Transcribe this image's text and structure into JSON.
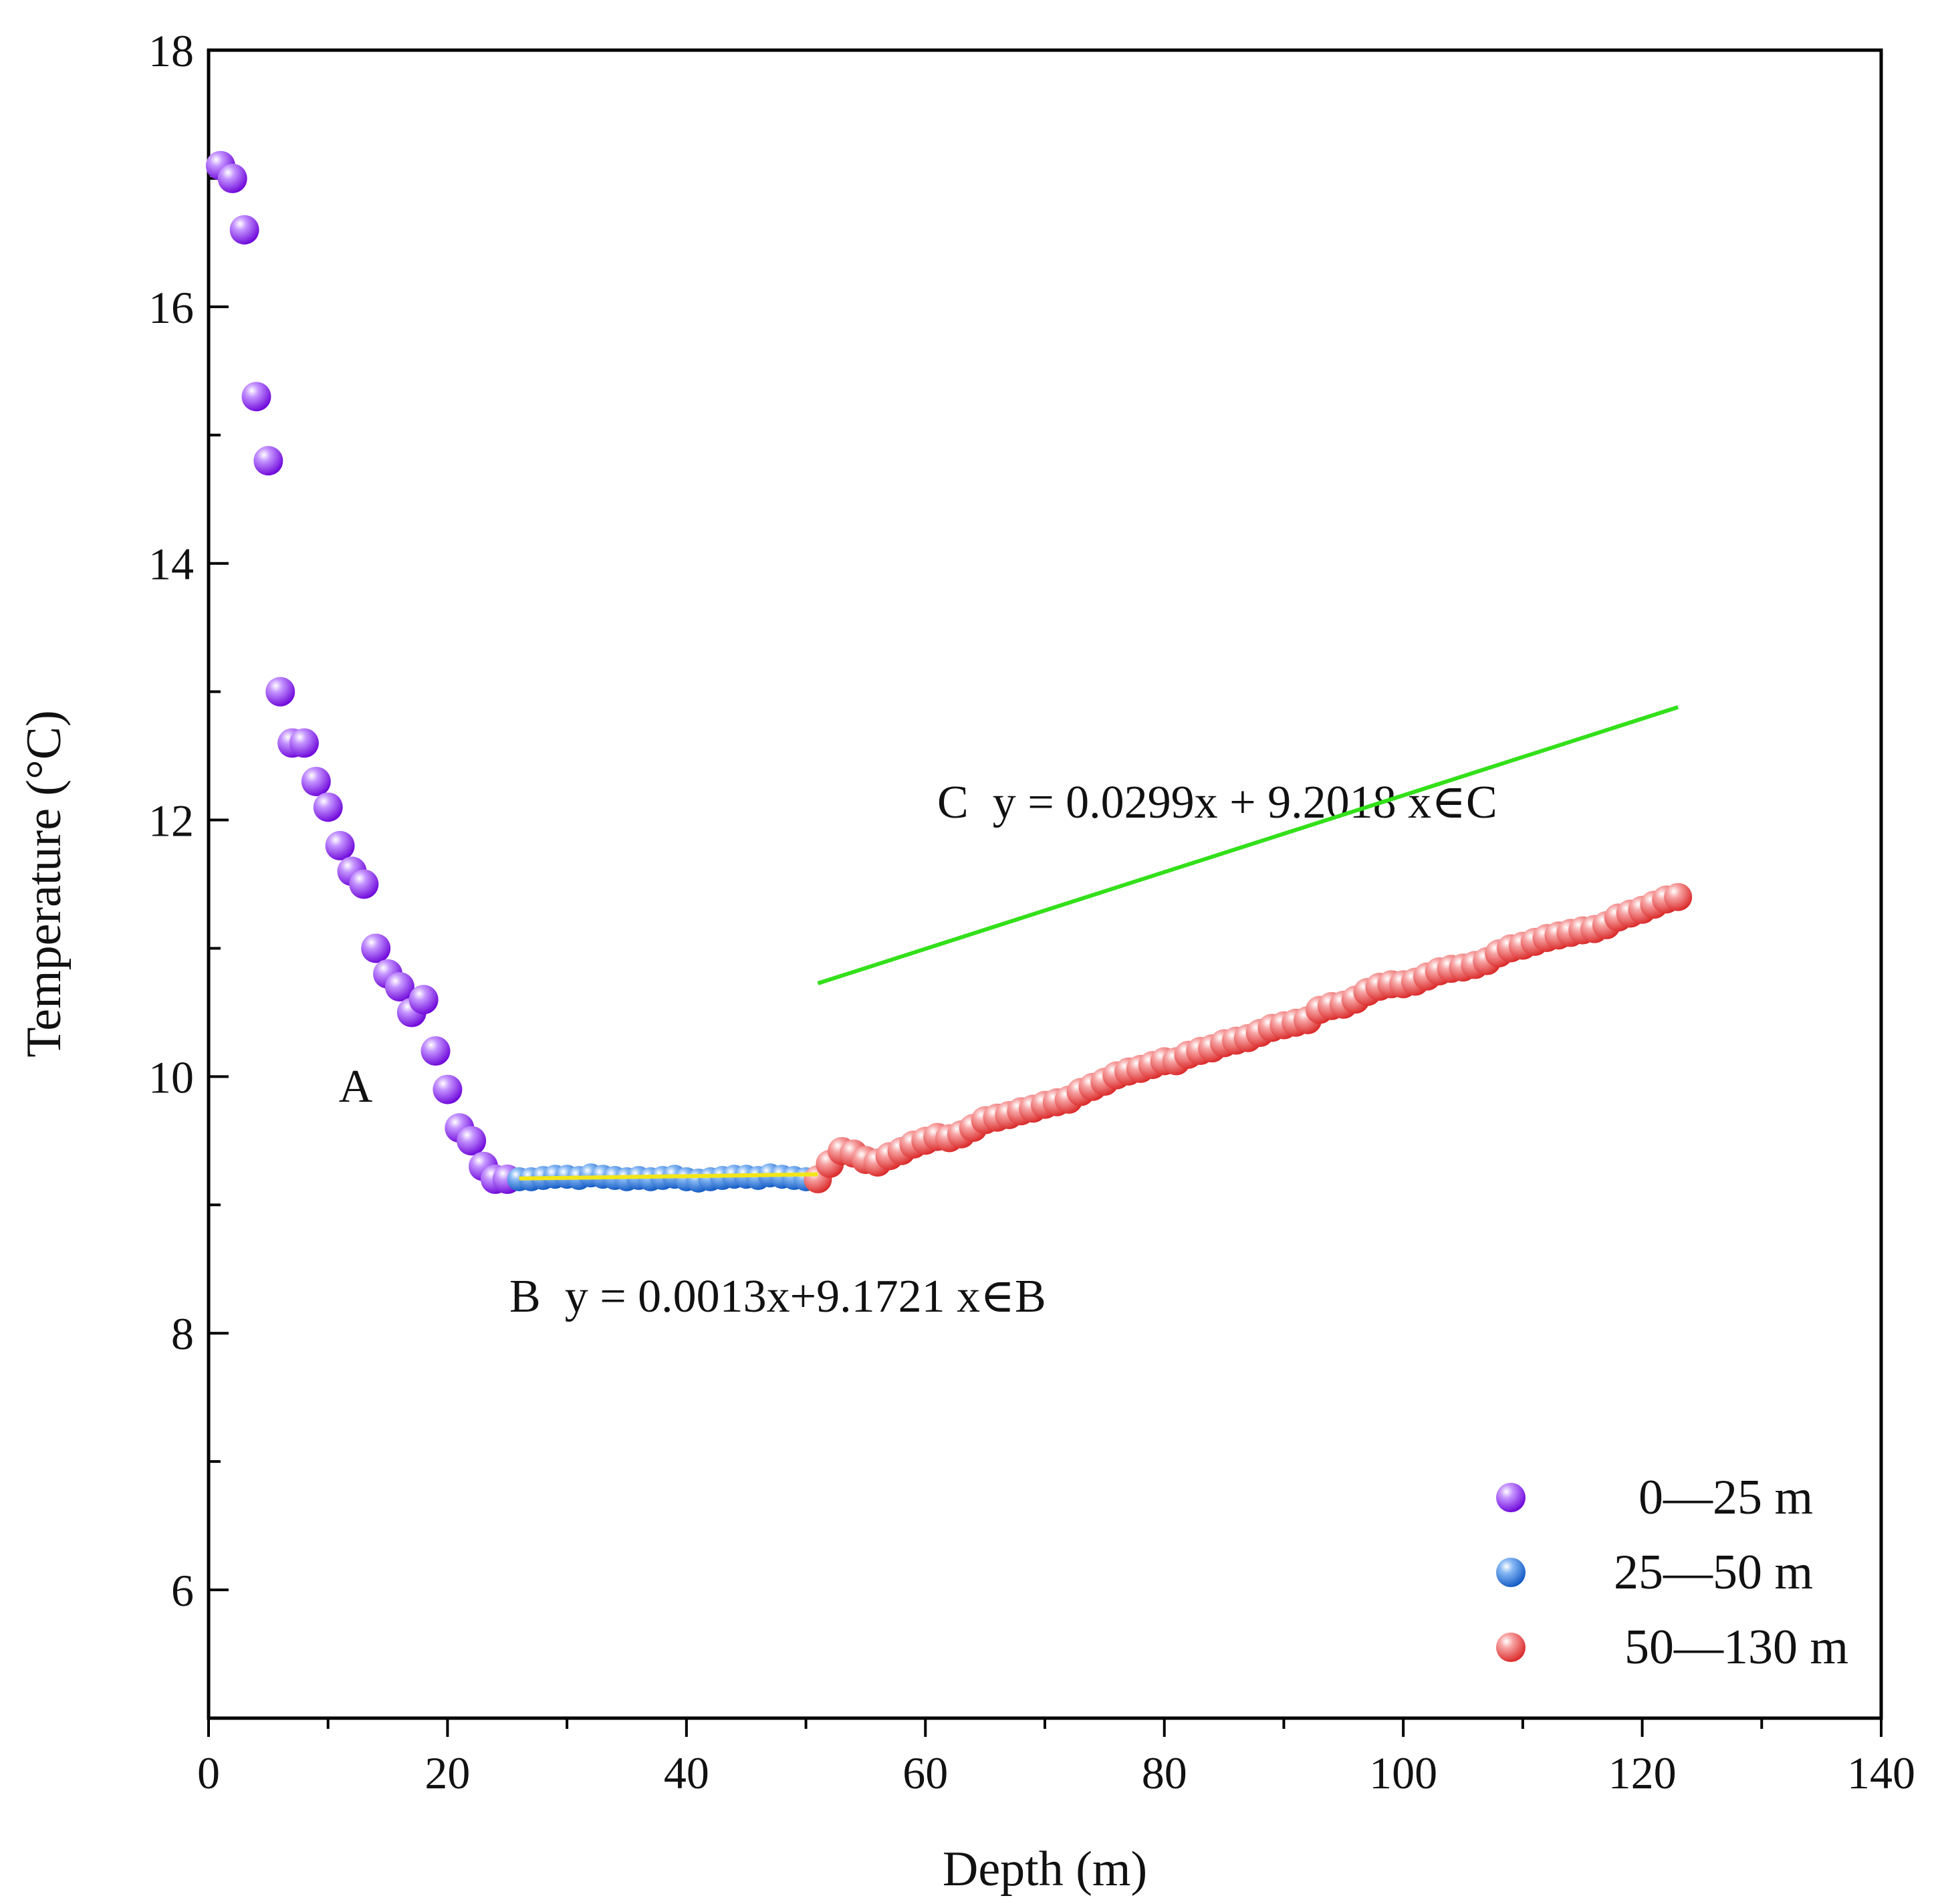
{
  "colors": {
    "series_A": "#8a1cf0",
    "series_B": "#1f70e0",
    "series_C": "#ef4747",
    "fit_B": "#f2e61a",
    "fit_C": "#33e01a",
    "axis": "#000000"
  },
  "chart_data": {
    "type": "scatter",
    "title": "",
    "xlabel": "Depth (m)",
    "ylabel": "Temperature (°C)",
    "xlim": [
      0,
      140
    ],
    "ylim": [
      5,
      18
    ],
    "xticks": [
      0,
      20,
      40,
      60,
      80,
      100,
      120,
      140
    ],
    "xticks_minor": [
      10,
      30,
      50,
      70,
      90,
      110,
      130
    ],
    "yticks": [
      6,
      8,
      10,
      12,
      14,
      16,
      18
    ],
    "yticks_minor": [
      7,
      9,
      11,
      13,
      15,
      17
    ],
    "grid": false,
    "legend_position": "bottom-right",
    "series": [
      {
        "name": "0—25 m",
        "color_key": "series_A",
        "x": [
          1,
          2,
          3,
          4,
          5,
          6,
          7,
          8,
          9,
          10,
          11,
          12,
          13,
          14,
          15,
          16,
          17,
          18,
          19,
          20,
          21,
          22,
          23,
          24,
          25
        ],
        "y": [
          17.1,
          17.0,
          16.6,
          15.3,
          14.8,
          13.0,
          12.6,
          12.6,
          12.3,
          12.1,
          11.8,
          11.6,
          11.5,
          11.0,
          10.8,
          10.7,
          10.5,
          10.6,
          10.2,
          9.9,
          9.6,
          9.5,
          9.3,
          9.2,
          9.2
        ]
      },
      {
        "name": "25—50 m",
        "color_key": "series_B",
        "x": [
          26,
          27,
          28,
          29,
          30,
          31,
          32,
          33,
          34,
          35,
          36,
          37,
          38,
          39,
          40,
          41,
          42,
          43,
          44,
          45,
          46,
          47,
          48,
          49,
          50
        ],
        "y": [
          9.2,
          9.2,
          9.21,
          9.22,
          9.22,
          9.21,
          9.23,
          9.22,
          9.21,
          9.2,
          9.21,
          9.2,
          9.21,
          9.22,
          9.2,
          9.19,
          9.2,
          9.21,
          9.22,
          9.22,
          9.21,
          9.23,
          9.22,
          9.21,
          9.2
        ]
      },
      {
        "name": "50—130 m",
        "color_key": "series_C",
        "x": [
          51,
          52,
          53,
          54,
          55,
          56,
          57,
          58,
          59,
          60,
          61,
          62,
          63,
          64,
          65,
          66,
          67,
          68,
          69,
          70,
          71,
          72,
          73,
          74,
          75,
          76,
          77,
          78,
          79,
          80,
          81,
          82,
          83,
          84,
          85,
          86,
          87,
          88,
          89,
          90,
          91,
          92,
          93,
          94,
          95,
          96,
          97,
          98,
          99,
          100,
          101,
          102,
          103,
          104,
          105,
          106,
          107,
          108,
          109,
          110,
          111,
          112,
          113,
          114,
          115,
          116,
          117,
          118,
          119,
          120,
          121,
          122,
          123
        ],
        "y": [
          9.2,
          9.32,
          9.42,
          9.4,
          9.35,
          9.33,
          9.38,
          9.42,
          9.47,
          9.5,
          9.53,
          9.52,
          9.55,
          9.6,
          9.66,
          9.68,
          9.7,
          9.73,
          9.75,
          9.78,
          9.8,
          9.82,
          9.88,
          9.92,
          9.96,
          10.01,
          10.04,
          10.06,
          10.09,
          10.12,
          10.12,
          10.17,
          10.2,
          10.22,
          10.26,
          10.28,
          10.3,
          10.34,
          10.38,
          10.4,
          10.42,
          10.44,
          10.52,
          10.55,
          10.56,
          10.6,
          10.66,
          10.7,
          10.72,
          10.72,
          10.74,
          10.78,
          10.82,
          10.84,
          10.85,
          10.87,
          10.9,
          10.96,
          11.0,
          11.02,
          11.05,
          11.08,
          11.1,
          11.12,
          11.14,
          11.15,
          11.18,
          11.24,
          11.27,
          11.3,
          11.34,
          11.38,
          11.4
        ]
      }
    ],
    "fits": [
      {
        "label": "B",
        "equation": "y = 0.0013x+9.1721 x∈B",
        "slope": 0.0013,
        "intercept": 9.1721,
        "x_range": [
          26,
          51
        ],
        "color_key": "fit_B"
      },
      {
        "label": "C",
        "equation": "y = 0.0299x + 9.2018 x∈C",
        "slope": 0.0299,
        "intercept": 9.2018,
        "x_range": [
          51,
          123
        ],
        "color_key": "fit_C"
      }
    ],
    "annotations": [
      {
        "text": "A"
      }
    ]
  }
}
